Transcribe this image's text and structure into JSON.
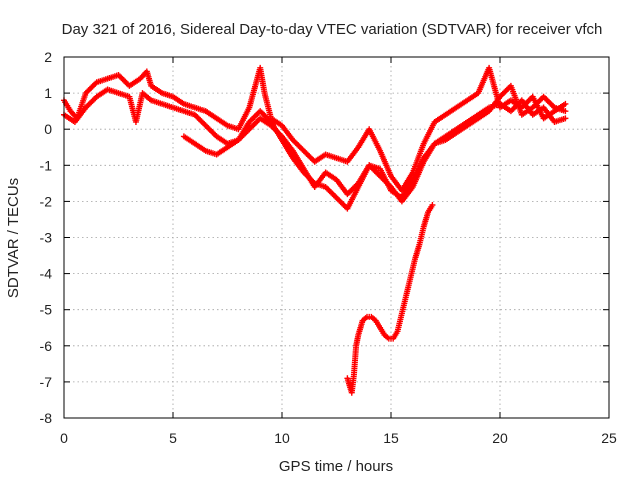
{
  "chart_data": {
    "type": "scatter",
    "title": "Day 321 of 2016, Sidereal Day-to-day VTEC variation (SDTVAR) for receiver vfch",
    "xlabel": "GPS time / hours",
    "ylabel": "SDTVAR / TECUs",
    "xlim": [
      0,
      25
    ],
    "ylim": [
      -8,
      2
    ],
    "xticks": [
      "0",
      "5",
      "10",
      "15",
      "20",
      "25"
    ],
    "yticks": [
      "2",
      "1",
      "0",
      "-1",
      "-2",
      "-3",
      "-4",
      "-5",
      "-6",
      "-7",
      "-8"
    ],
    "grid": true,
    "marker": "+",
    "color": "#ff0000",
    "series": [
      {
        "name": "trace-1",
        "points": [
          [
            0,
            0.8
          ],
          [
            0.3,
            0.5
          ],
          [
            0.6,
            0.3
          ],
          [
            1,
            1.0
          ],
          [
            1.5,
            1.3
          ],
          [
            2,
            1.4
          ],
          [
            2.5,
            1.5
          ],
          [
            3,
            1.2
          ],
          [
            3.5,
            1.4
          ],
          [
            3.8,
            1.6
          ],
          [
            4,
            1.2
          ],
          [
            4.5,
            1.0
          ],
          [
            5,
            0.9
          ],
          [
            5.5,
            0.7
          ],
          [
            6,
            0.6
          ],
          [
            6.5,
            0.5
          ],
          [
            7,
            0.3
          ],
          [
            7.5,
            0.1
          ],
          [
            8,
            0.0
          ],
          [
            8.5,
            0.6
          ],
          [
            9,
            1.7
          ],
          [
            9.2,
            1.0
          ],
          [
            9.5,
            0.3
          ],
          [
            10,
            0.1
          ],
          [
            10.5,
            -0.3
          ],
          [
            11,
            -0.6
          ],
          [
            11.5,
            -0.9
          ],
          [
            12,
            -0.7
          ],
          [
            12.5,
            -0.8
          ],
          [
            13,
            -0.9
          ],
          [
            13.5,
            -0.5
          ],
          [
            14,
            0.0
          ],
          [
            14.5,
            -0.6
          ],
          [
            15,
            -1.3
          ],
          [
            15.5,
            -1.7
          ],
          [
            16,
            -1.2
          ],
          [
            16.5,
            -0.4
          ],
          [
            17,
            0.2
          ],
          [
            17.5,
            0.4
          ],
          [
            18,
            0.6
          ],
          [
            18.5,
            0.8
          ],
          [
            19,
            1.0
          ],
          [
            19.5,
            1.7
          ],
          [
            20,
            0.6
          ],
          [
            20.5,
            0.8
          ],
          [
            21,
            0.6
          ],
          [
            21.5,
            0.9
          ],
          [
            22,
            0.3
          ],
          [
            22.5,
            0.5
          ],
          [
            23,
            0.7
          ]
        ]
      },
      {
        "name": "trace-2",
        "points": [
          [
            0,
            0.4
          ],
          [
            0.5,
            0.2
          ],
          [
            1,
            0.6
          ],
          [
            1.5,
            0.9
          ],
          [
            2,
            1.1
          ],
          [
            2.5,
            1.0
          ],
          [
            3,
            0.9
          ],
          [
            3.3,
            0.2
          ],
          [
            3.6,
            1.0
          ],
          [
            4,
            0.8
          ],
          [
            4.5,
            0.7
          ],
          [
            5,
            0.6
          ],
          [
            5.5,
            0.5
          ],
          [
            6,
            0.4
          ],
          [
            6.5,
            0.1
          ],
          [
            7,
            -0.2
          ],
          [
            7.5,
            -0.4
          ],
          [
            8,
            -0.3
          ],
          [
            8.5,
            0.0
          ],
          [
            9,
            0.3
          ],
          [
            9.5,
            0.1
          ],
          [
            10,
            -0.2
          ],
          [
            10.5,
            -0.6
          ],
          [
            11,
            -1.1
          ],
          [
            11.5,
            -1.6
          ],
          [
            12,
            -1.2
          ],
          [
            12.5,
            -1.4
          ],
          [
            13,
            -1.8
          ],
          [
            13.5,
            -1.5
          ],
          [
            14,
            -1.0
          ],
          [
            14.5,
            -1.3
          ],
          [
            15,
            -1.6
          ],
          [
            15.5,
            -2.0
          ],
          [
            16,
            -1.6
          ],
          [
            16.5,
            -0.9
          ],
          [
            17,
            -0.4
          ],
          [
            17.5,
            -0.2
          ],
          [
            18,
            0.0
          ],
          [
            18.5,
            0.2
          ],
          [
            19,
            0.4
          ],
          [
            19.5,
            0.6
          ],
          [
            20,
            0.7
          ],
          [
            20.5,
            0.5
          ],
          [
            21,
            0.8
          ],
          [
            21.5,
            0.4
          ],
          [
            22,
            0.6
          ],
          [
            22.5,
            0.2
          ],
          [
            23,
            0.3
          ]
        ]
      },
      {
        "name": "trace-3",
        "points": [
          [
            5.5,
            -0.2
          ],
          [
            6,
            -0.4
          ],
          [
            6.5,
            -0.6
          ],
          [
            7,
            -0.7
          ],
          [
            7.5,
            -0.5
          ],
          [
            8,
            -0.3
          ],
          [
            8.5,
            0.2
          ],
          [
            9,
            0.5
          ],
          [
            9.5,
            0.2
          ],
          [
            10,
            -0.3
          ],
          [
            10.5,
            -0.8
          ],
          [
            11,
            -1.2
          ],
          [
            11.5,
            -1.5
          ],
          [
            12,
            -1.6
          ],
          [
            12.5,
            -1.9
          ],
          [
            13,
            -2.2
          ],
          [
            13.5,
            -1.6
          ],
          [
            14,
            -1.0
          ],
          [
            14.5,
            -1.1
          ],
          [
            15,
            -1.7
          ],
          [
            15.5,
            -1.9
          ],
          [
            16,
            -1.4
          ],
          [
            16.5,
            -0.8
          ],
          [
            17,
            -0.4
          ],
          [
            17.5,
            -0.3
          ],
          [
            18,
            -0.1
          ],
          [
            18.5,
            0.1
          ],
          [
            19,
            0.3
          ],
          [
            19.5,
            0.5
          ],
          [
            20,
            0.9
          ],
          [
            20.5,
            1.2
          ],
          [
            21,
            0.4
          ],
          [
            21.5,
            0.6
          ],
          [
            22,
            0.9
          ],
          [
            22.5,
            0.6
          ],
          [
            23,
            0.5
          ]
        ]
      },
      {
        "name": "trace-4",
        "points": [
          [
            13,
            -6.9
          ],
          [
            13.1,
            -7.1
          ],
          [
            13.2,
            -7.3
          ],
          [
            13.3,
            -6.8
          ],
          [
            13.4,
            -6.0
          ],
          [
            13.5,
            -5.7
          ],
          [
            13.7,
            -5.3
          ],
          [
            13.9,
            -5.2
          ],
          [
            14.1,
            -5.2
          ],
          [
            14.3,
            -5.3
          ],
          [
            14.5,
            -5.5
          ],
          [
            14.7,
            -5.7
          ],
          [
            14.9,
            -5.8
          ],
          [
            15.1,
            -5.8
          ],
          [
            15.3,
            -5.6
          ],
          [
            15.5,
            -5.1
          ],
          [
            15.7,
            -4.6
          ],
          [
            15.9,
            -4.1
          ],
          [
            16.1,
            -3.6
          ],
          [
            16.3,
            -3.2
          ],
          [
            16.5,
            -2.7
          ],
          [
            16.7,
            -2.3
          ],
          [
            16.9,
            -2.1
          ]
        ]
      }
    ]
  }
}
